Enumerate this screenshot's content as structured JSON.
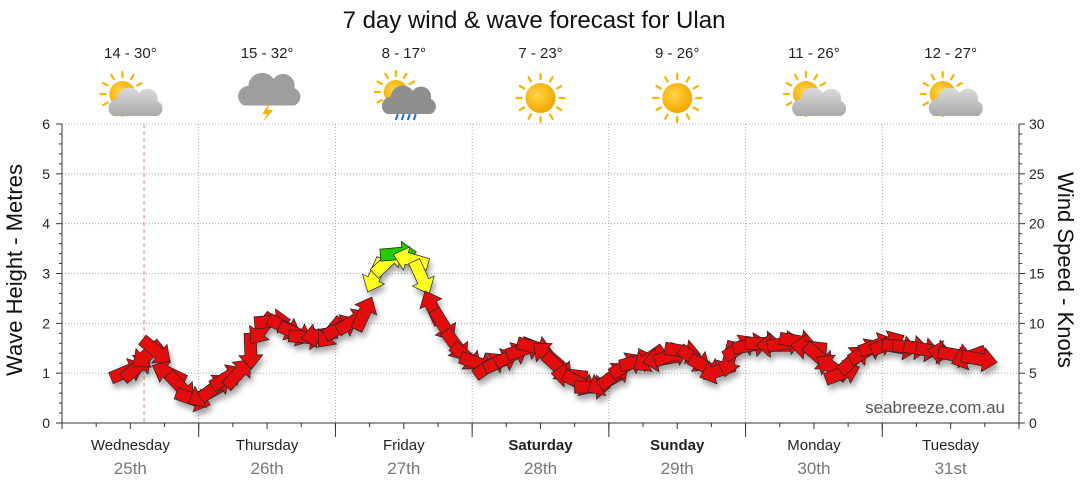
{
  "chart_data": {
    "type": "line",
    "title": "7 day wind & wave forecast for Ulan",
    "ylabel_left": "Wave Height - Metres",
    "ylabel_right": "Wind Speed - Knots",
    "ylim_left": [
      0,
      6
    ],
    "ylim_right": [
      0,
      30
    ],
    "yticks_left": [
      "0",
      "1",
      "2",
      "3",
      "4",
      "5",
      "6"
    ],
    "yticks_right": [
      "0",
      "5",
      "10",
      "15",
      "20",
      "25",
      "30"
    ],
    "days": [
      {
        "name": "Wednesday",
        "date": "25th",
        "bold": false,
        "temp": "14 - 30°",
        "weather": "partly-cloudy-icon"
      },
      {
        "name": "Thursday",
        "date": "26th",
        "bold": false,
        "temp": "15 - 32°",
        "weather": "thunderstorm-icon"
      },
      {
        "name": "Friday",
        "date": "27th",
        "bold": false,
        "temp": "8 - 17°",
        "weather": "sun-cloud-rain-icon"
      },
      {
        "name": "Saturday",
        "date": "28th",
        "bold": true,
        "temp": "7 - 23°",
        "weather": "sunny-icon"
      },
      {
        "name": "Sunday",
        "date": "29th",
        "bold": true,
        "temp": "9 - 26°",
        "weather": "sunny-icon"
      },
      {
        "name": "Monday",
        "date": "30th",
        "bold": false,
        "temp": "11 - 26°",
        "weather": "partly-cloudy-icon"
      },
      {
        "name": "Tuesday",
        "date": "31st",
        "bold": false,
        "temp": "12 - 27°",
        "weather": "partly-cloudy-icon"
      }
    ],
    "grid": true,
    "now_marker_day": 0.6,
    "wind_series": {
      "name": "Wind",
      "x_unit": "days from Wednesday 00:00",
      "y_unit": "knots",
      "points": [
        {
          "x": 0.48,
          "y": 5.2
        },
        {
          "x": 0.55,
          "y": 5.6
        },
        {
          "x": 0.62,
          "y": 6.8
        },
        {
          "x": 0.69,
          "y": 7.2
        },
        {
          "x": 0.78,
          "y": 5.0
        },
        {
          "x": 0.87,
          "y": 3.6
        },
        {
          "x": 0.96,
          "y": 2.4
        },
        {
          "x": 1.04,
          "y": 2.8
        },
        {
          "x": 1.12,
          "y": 3.6
        },
        {
          "x": 1.21,
          "y": 4.6
        },
        {
          "x": 1.29,
          "y": 5.0
        },
        {
          "x": 1.38,
          "y": 7.2
        },
        {
          "x": 1.46,
          "y": 9.4
        },
        {
          "x": 1.54,
          "y": 10.2
        },
        {
          "x": 1.63,
          "y": 9.6
        },
        {
          "x": 1.71,
          "y": 9.0
        },
        {
          "x": 1.79,
          "y": 8.6
        },
        {
          "x": 1.88,
          "y": 8.8
        },
        {
          "x": 1.96,
          "y": 9.0
        },
        {
          "x": 2.04,
          "y": 9.6
        },
        {
          "x": 2.13,
          "y": 10.2
        },
        {
          "x": 2.21,
          "y": 11.0
        },
        {
          "x": 2.29,
          "y": 14.8
        },
        {
          "x": 2.38,
          "y": 16.2
        },
        {
          "x": 2.46,
          "y": 17.0
        },
        {
          "x": 2.55,
          "y": 16.4
        },
        {
          "x": 2.63,
          "y": 14.6
        },
        {
          "x": 2.71,
          "y": 11.6
        },
        {
          "x": 2.79,
          "y": 9.8
        },
        {
          "x": 2.88,
          "y": 7.8
        },
        {
          "x": 2.96,
          "y": 6.6
        },
        {
          "x": 3.04,
          "y": 6.0
        },
        {
          "x": 3.13,
          "y": 5.8
        },
        {
          "x": 3.21,
          "y": 6.2
        },
        {
          "x": 3.29,
          "y": 6.8
        },
        {
          "x": 3.38,
          "y": 7.4
        },
        {
          "x": 3.46,
          "y": 7.6
        },
        {
          "x": 3.55,
          "y": 6.8
        },
        {
          "x": 3.63,
          "y": 5.6
        },
        {
          "x": 3.71,
          "y": 4.8
        },
        {
          "x": 3.79,
          "y": 4.0
        },
        {
          "x": 3.88,
          "y": 3.6
        },
        {
          "x": 3.96,
          "y": 4.0
        },
        {
          "x": 4.04,
          "y": 4.8
        },
        {
          "x": 4.13,
          "y": 5.8
        },
        {
          "x": 4.21,
          "y": 6.2
        },
        {
          "x": 4.29,
          "y": 6.4
        },
        {
          "x": 4.38,
          "y": 6.4
        },
        {
          "x": 4.46,
          "y": 6.8
        },
        {
          "x": 4.54,
          "y": 7.2
        },
        {
          "x": 4.63,
          "y": 6.4
        },
        {
          "x": 4.71,
          "y": 5.6
        },
        {
          "x": 4.79,
          "y": 5.2
        },
        {
          "x": 4.88,
          "y": 6.4
        },
        {
          "x": 4.96,
          "y": 7.6
        },
        {
          "x": 5.04,
          "y": 7.8
        },
        {
          "x": 5.13,
          "y": 8.0
        },
        {
          "x": 5.21,
          "y": 7.8
        },
        {
          "x": 5.29,
          "y": 8.0
        },
        {
          "x": 5.38,
          "y": 8.2
        },
        {
          "x": 5.46,
          "y": 7.6
        },
        {
          "x": 5.54,
          "y": 6.6
        },
        {
          "x": 5.63,
          "y": 5.6
        },
        {
          "x": 5.71,
          "y": 5.0
        },
        {
          "x": 5.79,
          "y": 6.4
        },
        {
          "x": 5.88,
          "y": 7.2
        },
        {
          "x": 5.96,
          "y": 7.8
        },
        {
          "x": 6.04,
          "y": 8.0
        },
        {
          "x": 6.13,
          "y": 7.6
        },
        {
          "x": 6.21,
          "y": 7.6
        },
        {
          "x": 6.29,
          "y": 7.4
        },
        {
          "x": 6.38,
          "y": 7.2
        },
        {
          "x": 6.46,
          "y": 7.0
        },
        {
          "x": 6.54,
          "y": 6.8
        },
        {
          "x": 6.63,
          "y": 6.6
        },
        {
          "x": 6.71,
          "y": 6.4
        }
      ]
    },
    "wind_colors": {
      "red": "#e41010",
      "yellow": "#ffff22",
      "green": "#22cc00"
    },
    "colors": {
      "grid": "#9a9a9a",
      "axis": "#333333",
      "now_line": "#f08080",
      "tick_text": "#222222"
    }
  },
  "watermark": "seabreeze.com.au"
}
